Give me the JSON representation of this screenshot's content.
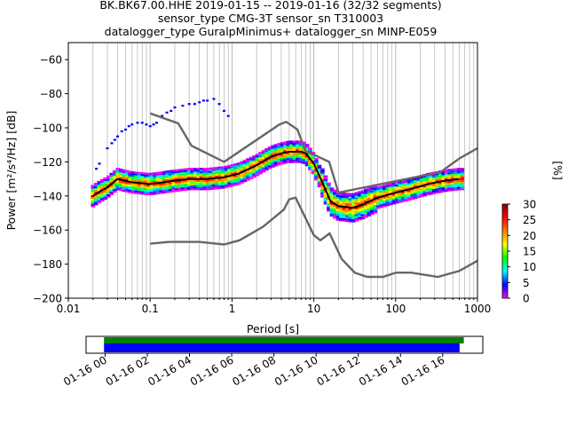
{
  "header": {
    "title_line1": "BK.BK67.00.HHE   2019-01-15 -- 2019-01-16  (32/32 segments)",
    "title_line2": "sensor_type CMG-3T sensor_sn T310003",
    "title_line3": "datalogger_type GuralpMinimus+ datalogger_sn MINP-E059"
  },
  "chart_data": [
    {
      "type": "heatmap",
      "title": "BK.BK67.00.HHE   2019-01-15 -- 2019-01-16  (32/32 segments)",
      "xlabel": "Period [s]",
      "ylabel": "Power [m²/s⁴/Hz] [dB]",
      "xscale": "log",
      "xlim": [
        0.01,
        1000
      ],
      "ylim": [
        -200,
        -50
      ],
      "x_ticks": [
        0.01,
        0.1,
        1,
        10,
        100,
        1000
      ],
      "x_tick_labels": [
        "0.01",
        "0.1",
        "1",
        "10",
        "100",
        "1000"
      ],
      "y_ticks": [
        -200,
        -180,
        -160,
        -140,
        -120,
        -100,
        -80,
        -60
      ],
      "y_tick_labels": [
        "−200",
        "−180",
        "−160",
        "−140",
        "−120",
        "−100",
        "−80",
        "−60"
      ],
      "grid": "vertical",
      "colorbar": {
        "label": "[%]",
        "min": 0,
        "max": 30,
        "ticks": [
          0,
          5,
          10,
          15,
          20,
          25,
          30
        ],
        "tick_labels": [
          "0",
          "5",
          "10",
          "15",
          "20",
          "25",
          "30"
        ],
        "colors": [
          "#ffffff",
          "#ff00ff",
          "#0000ff",
          "#00ffff",
          "#00ff00",
          "#ffff00",
          "#ff8000",
          "#ff0000",
          "#800000"
        ]
      },
      "mode_curve": {
        "period": [
          0.02,
          0.025,
          0.03,
          0.04,
          0.06,
          0.1,
          0.2,
          0.3,
          0.5,
          0.8,
          1.2,
          2,
          3,
          4,
          5,
          6,
          7,
          8,
          10,
          13,
          16,
          20,
          30,
          40,
          60,
          100,
          150,
          250,
          400,
          600
        ],
        "power": [
          -140,
          -137,
          -135,
          -130,
          -132,
          -133,
          -131,
          -130,
          -130,
          -129,
          -127,
          -122,
          -117,
          -115,
          -114,
          -114,
          -114,
          -115,
          -121,
          -133,
          -143,
          -146,
          -147,
          -145,
          -141,
          -138,
          -136,
          -133,
          -131,
          -130
        ]
      },
      "noise_models": [
        {
          "period": [
            0.1,
            0.17,
            0.4,
            0.8,
            1.24,
            2.4,
            4.3,
            5,
            6,
            10,
            12,
            15.6,
            21.9,
            31.6,
            45,
            70,
            101,
            154,
            328,
            600,
            1000
          ],
          "power": [
            -168,
            -167,
            -167,
            -168.5,
            -166,
            -158,
            -148,
            -142,
            -141,
            -163,
            -166,
            -162,
            -177,
            -185,
            -187.5,
            -187.5,
            -185,
            -185,
            -187.5,
            -184,
            -178
          ]
        },
        {
          "period": [
            0.1,
            0.22,
            0.32,
            0.8,
            3.8,
            4.6,
            6.3,
            7.9,
            15.4,
            20,
            354.8,
            600,
            1000
          ],
          "power": [
            -91.5,
            -97.4,
            -110.5,
            -120,
            -98,
            -96.5,
            -101,
            -113.5,
            -120,
            -138,
            -126,
            -118,
            -112
          ]
        }
      ],
      "blue_outlier_points": [
        [
          0.022,
          -124
        ],
        [
          0.024,
          -121
        ],
        [
          0.03,
          -112
        ],
        [
          0.034,
          -109
        ],
        [
          0.037,
          -107
        ],
        [
          0.04,
          -105
        ],
        [
          0.045,
          -102
        ],
        [
          0.05,
          -101
        ],
        [
          0.055,
          -99
        ],
        [
          0.06,
          -98
        ],
        [
          0.07,
          -97
        ],
        [
          0.08,
          -97
        ],
        [
          0.09,
          -98
        ],
        [
          0.1,
          -99
        ],
        [
          0.11,
          -98
        ],
        [
          0.12,
          -97
        ],
        [
          0.14,
          -93
        ],
        [
          0.16,
          -91
        ],
        [
          0.18,
          -90
        ],
        [
          0.2,
          -88
        ],
        [
          0.25,
          -87
        ],
        [
          0.3,
          -86
        ],
        [
          0.35,
          -86
        ],
        [
          0.4,
          -85
        ],
        [
          0.45,
          -84
        ],
        [
          0.5,
          -84
        ],
        [
          0.6,
          -83
        ],
        [
          0.7,
          -86
        ],
        [
          0.8,
          -90
        ],
        [
          0.9,
          -93
        ]
      ]
    },
    {
      "type": "timeline",
      "x_tick_labels": [
        "01-16 00",
        "01-16 02",
        "01-16 04",
        "01-16 06",
        "01-16 08",
        "01-16 10",
        "01-16 12",
        "01-16 14",
        "01-16 16"
      ],
      "bars": [
        {
          "color": "green",
          "start_hour": -0.05,
          "end_hour": 17.0
        },
        {
          "color": "blue",
          "start_hour": -0.05,
          "end_hour": 16.8
        }
      ],
      "xlim_hours": [
        -0.9,
        17.9
      ]
    }
  ]
}
